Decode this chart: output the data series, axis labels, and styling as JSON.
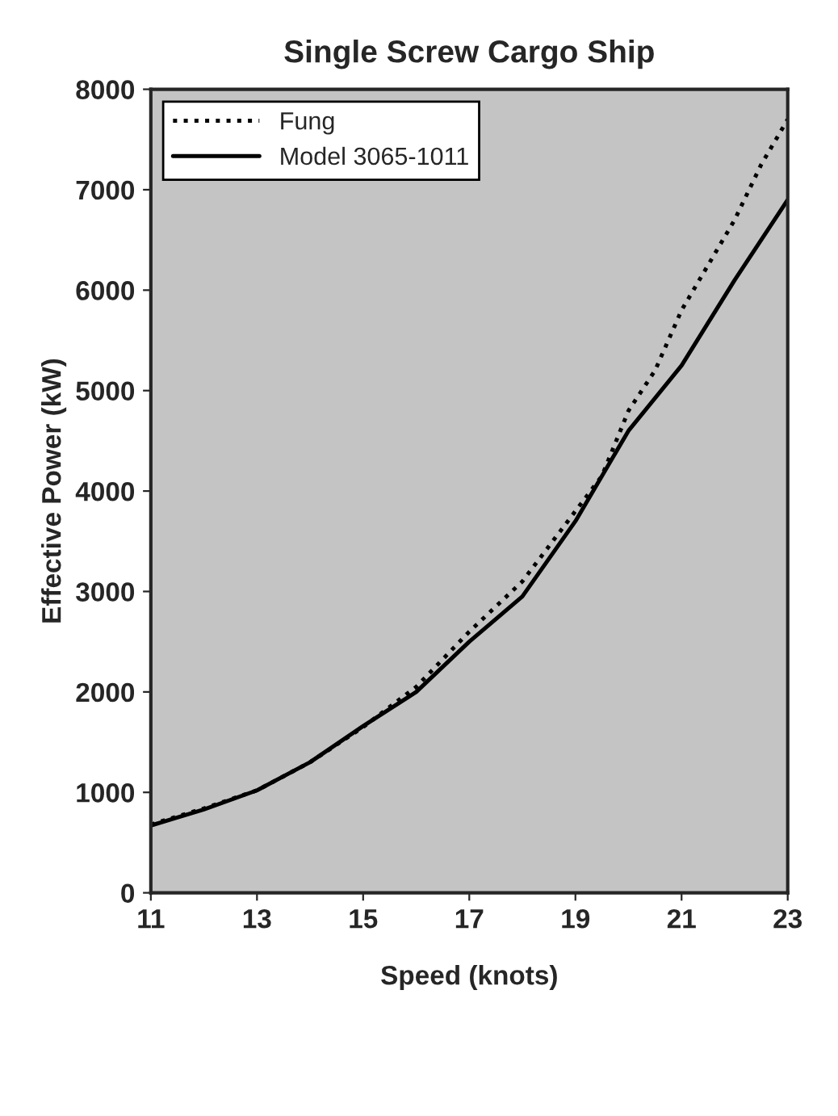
{
  "chart_data": {
    "type": "line",
    "title": "Single Screw Cargo Ship",
    "xlabel": "Speed (knots)",
    "ylabel": "Effective Power (kW)",
    "series": [
      {
        "name": "Fung",
        "color": "#000000",
        "line_style": "dotted",
        "x": [
          11,
          12,
          13,
          14,
          15,
          16,
          17,
          18,
          19,
          19.5,
          20,
          20.5,
          21,
          21.5,
          22,
          22.5,
          23
        ],
        "values": [
          680,
          840,
          1020,
          1300,
          1650,
          2050,
          2600,
          3100,
          3800,
          4150,
          4800,
          5200,
          5800,
          6250,
          6700,
          7250,
          7700
        ]
      },
      {
        "name": "Model 3065-1011",
        "color": "#000000",
        "line_style": "solid",
        "x": [
          11,
          12,
          13,
          14,
          15,
          16,
          17,
          18,
          19,
          20,
          21,
          22,
          23
        ],
        "values": [
          670,
          830,
          1020,
          1300,
          1660,
          2000,
          2500,
          2950,
          3700,
          4600,
          5250,
          6100,
          6900
        ]
      }
    ],
    "xlim": [
      11,
      23
    ],
    "xticks": [
      11,
      13,
      15,
      17,
      19,
      21,
      23
    ],
    "ylim": [
      0,
      8000
    ],
    "yticks": [
      0,
      1000,
      2000,
      3000,
      4000,
      5000,
      6000,
      7000,
      8000
    ],
    "grid": false,
    "legend": "top left"
  }
}
